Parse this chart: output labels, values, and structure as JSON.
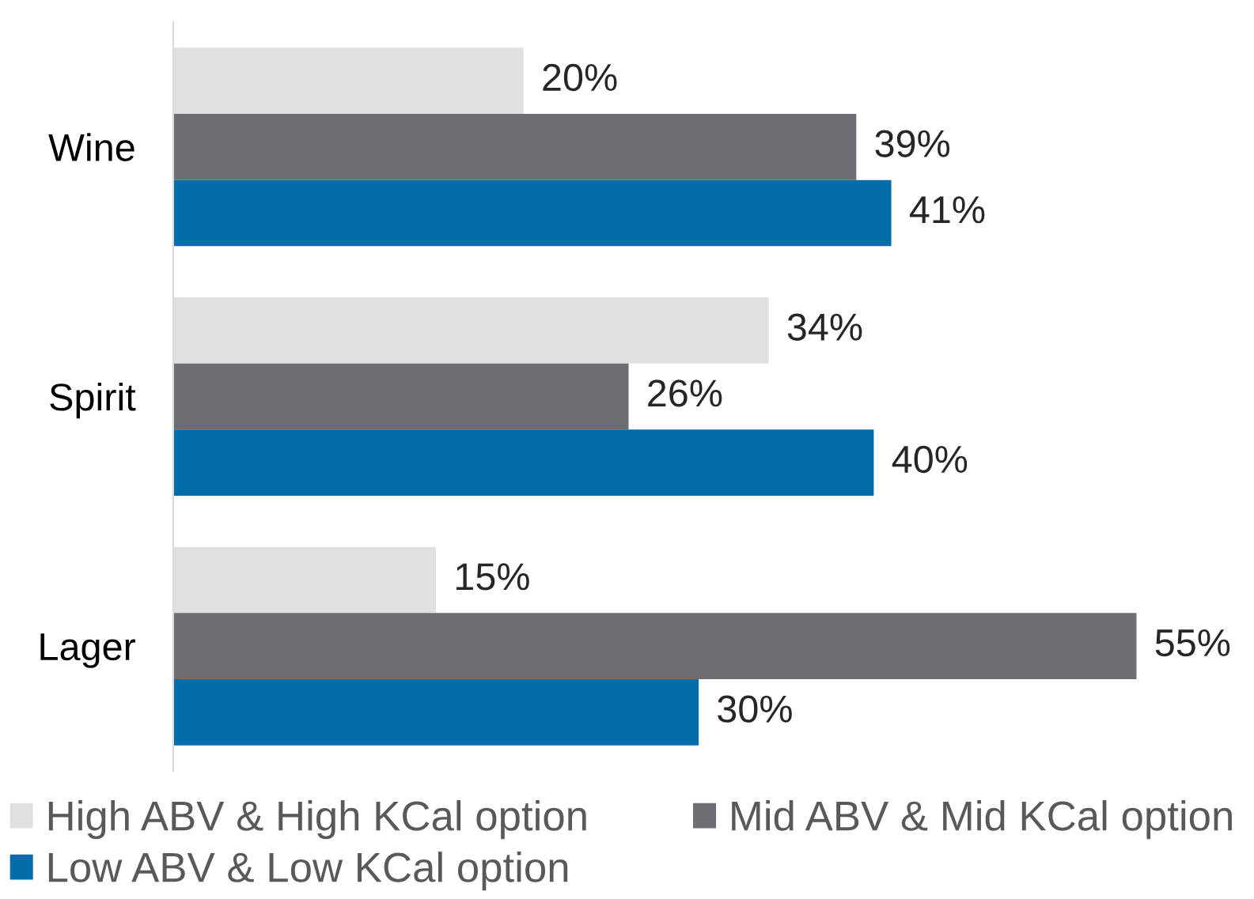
{
  "chart_data": {
    "type": "bar",
    "orientation": "horizontal",
    "categories": [
      "Wine",
      "Spirit",
      "Lager"
    ],
    "series": [
      {
        "name": "High ABV & High KCal option",
        "color": "#e0e0e0",
        "values": [
          20,
          34,
          15
        ],
        "value_labels": [
          "20%",
          "34%",
          "15%"
        ]
      },
      {
        "name": "Mid ABV & Mid KCal option",
        "color": "#6d6e71",
        "values": [
          39,
          26,
          55
        ],
        "value_labels": [
          "39%",
          "26%",
          "55%"
        ]
      },
      {
        "name": "Low ABV & Low KCal option",
        "color": "#046ca8",
        "values": [
          41,
          40,
          30
        ],
        "value_labels": [
          "41%",
          "40%",
          "30%"
        ]
      }
    ],
    "legend": "bottom",
    "grid": false,
    "tick_labels": "y"
  }
}
